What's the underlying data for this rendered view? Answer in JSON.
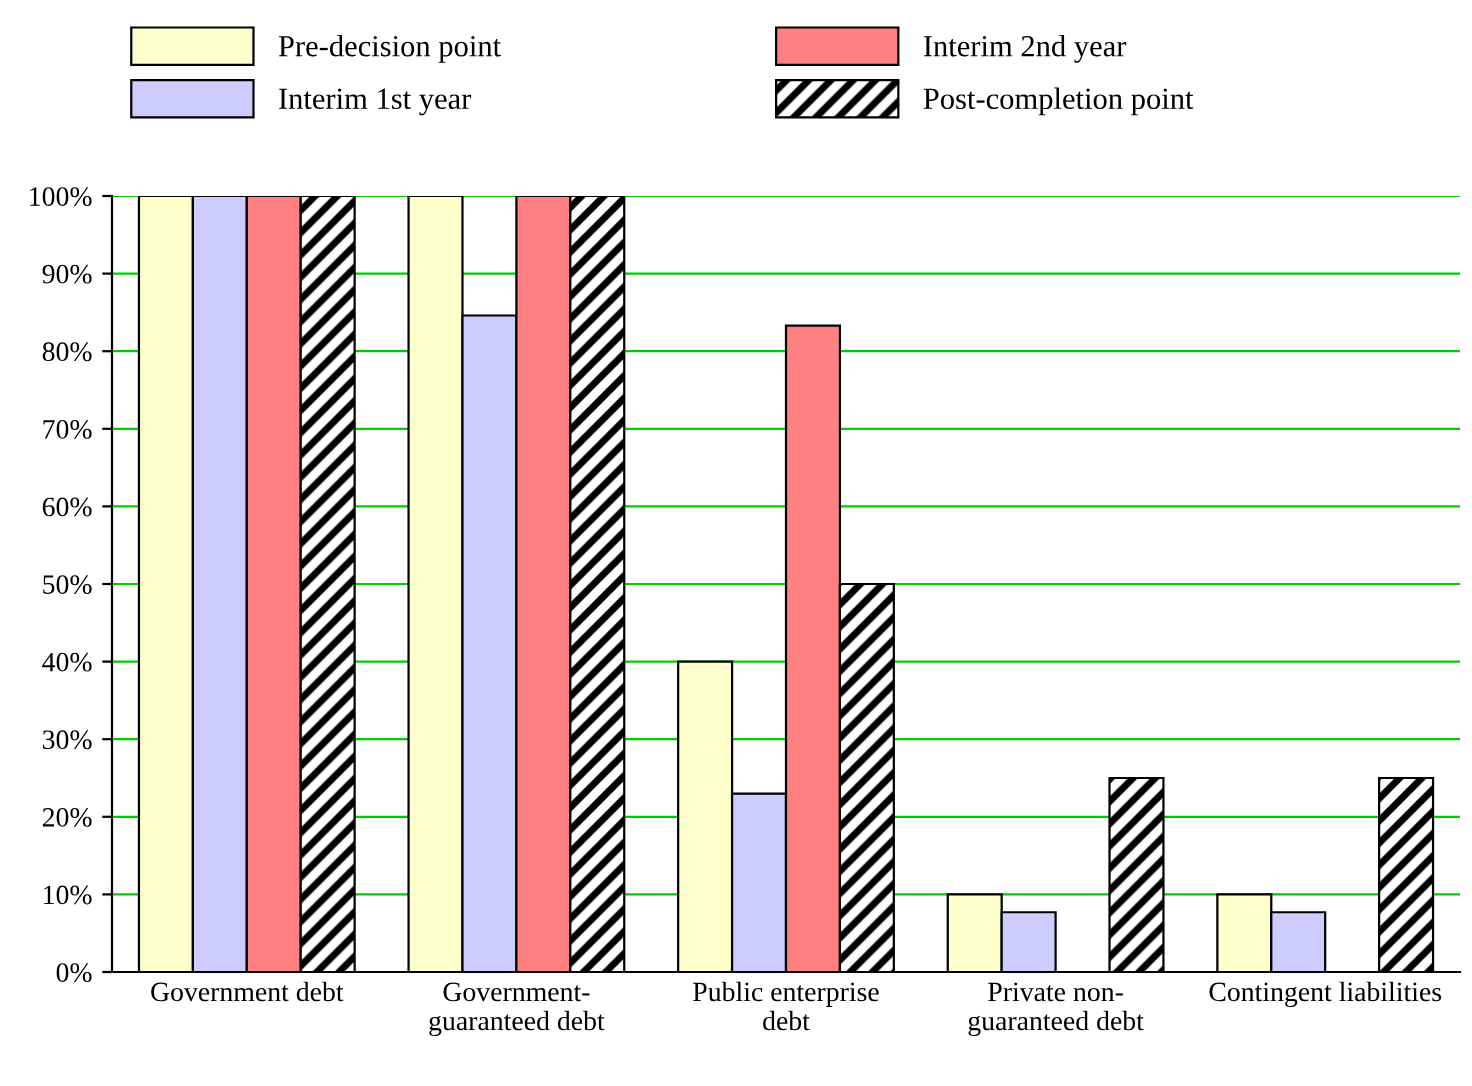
{
  "chart_data": {
    "type": "bar",
    "categories": [
      "Government debt",
      "Government-\nguaranteed debt",
      "Public enterprise\ndebt",
      "Private non-\nguaranteed debt",
      "Contingent liabilities"
    ],
    "series": [
      {
        "name": "Pre-decision point",
        "color": "#ffffcc",
        "values": [
          100,
          100,
          40,
          10,
          10
        ]
      },
      {
        "name": "Interim 1st year",
        "color": "#ccccff",
        "values": [
          100,
          84.6,
          23,
          7.7,
          7.7
        ]
      },
      {
        "name": "Interim 2nd year",
        "color": "#ff8080",
        "values": [
          100,
          100,
          83.3,
          null,
          null
        ]
      },
      {
        "name": "Post-completion point",
        "color": "#000000",
        "values": [
          100,
          100,
          50,
          25,
          25
        ]
      }
    ],
    "ylim": [
      0,
      100
    ],
    "yticks": [
      {
        "value": 0,
        "label": "0%"
      },
      {
        "value": 10,
        "label": "10%"
      },
      {
        "value": 20,
        "label": "20%"
      },
      {
        "value": 30,
        "label": "30%"
      },
      {
        "value": 40,
        "label": "40%"
      },
      {
        "value": 50,
        "label": "50%"
      },
      {
        "value": 60,
        "label": "60%"
      },
      {
        "value": 70,
        "label": "70%"
      },
      {
        "value": 80,
        "label": "80%"
      },
      {
        "value": 90,
        "label": "90%"
      },
      {
        "value": 100,
        "label": "100%"
      }
    ],
    "grid": "y",
    "legend": "top"
  }
}
